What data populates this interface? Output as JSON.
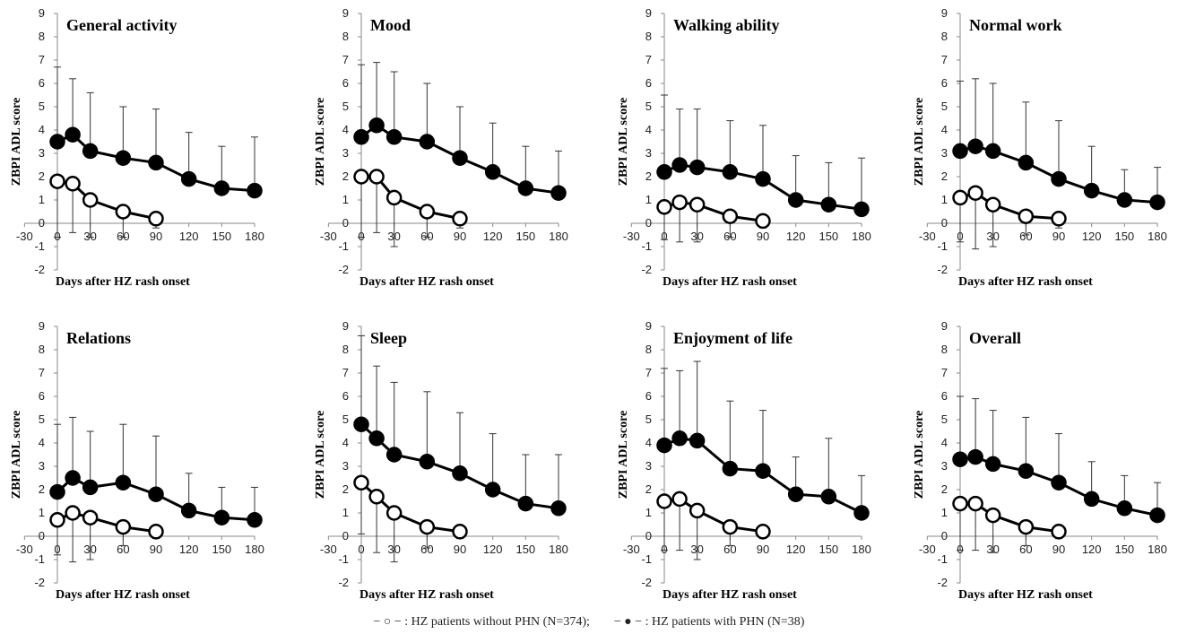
{
  "legend": {
    "without_prefix": "− ○ − :",
    "without_label": "HZ patients without PHN (N=374);",
    "with_prefix": "− ● − :",
    "with_label": "HZ patients with PHN (N=38)"
  },
  "chart_data": [
    {
      "type": "line",
      "title": "General activity",
      "xlabel": "Days after HZ rash onset",
      "ylabel": "ZBPI ADL score",
      "xlim": [
        -30,
        180
      ],
      "ylim": [
        -2,
        9
      ],
      "xticks": [
        -30,
        0,
        30,
        60,
        90,
        120,
        150,
        180
      ],
      "yticks": [
        -2,
        -1,
        0,
        1,
        2,
        3,
        4,
        5,
        6,
        7,
        8,
        9
      ],
      "series": [
        {
          "name": "HZ patients without PHN (N=374)",
          "marker": "open-circle",
          "x": [
            0,
            14,
            30,
            60,
            90
          ],
          "y": [
            1.8,
            1.7,
            1.0,
            0.5,
            0.2
          ],
          "error": [
            2.4,
            2.1,
            1.6,
            1.1,
            0.4
          ]
        },
        {
          "name": "HZ patients with PHN (N=38)",
          "marker": "filled-circle",
          "x": [
            0,
            14,
            30,
            60,
            90,
            120,
            150,
            180
          ],
          "y": [
            3.5,
            3.8,
            3.1,
            2.8,
            2.6,
            1.9,
            1.5,
            1.4
          ],
          "error": [
            3.2,
            2.4,
            2.5,
            2.2,
            2.3,
            2.0,
            1.8,
            2.3
          ]
        }
      ]
    },
    {
      "type": "line",
      "title": "Mood",
      "xlabel": "Days after HZ rash onset",
      "ylabel": "ZBPI ADL score",
      "xlim": [
        -30,
        180
      ],
      "ylim": [
        -2,
        9
      ],
      "xticks": [
        -30,
        0,
        30,
        60,
        90,
        120,
        150,
        180
      ],
      "yticks": [
        -2,
        -1,
        0,
        1,
        2,
        3,
        4,
        5,
        6,
        7,
        8,
        9
      ],
      "series": [
        {
          "name": "HZ patients without PHN (N=374)",
          "marker": "open-circle",
          "x": [
            0,
            14,
            30,
            60,
            90
          ],
          "y": [
            2.0,
            2.0,
            1.1,
            0.5,
            0.2
          ],
          "error": [
            2.6,
            2.4,
            2.1,
            1.1,
            0.4
          ]
        },
        {
          "name": "HZ patients with PHN (N=38)",
          "marker": "filled-circle",
          "x": [
            0,
            14,
            30,
            60,
            90,
            120,
            150,
            180
          ],
          "y": [
            3.7,
            4.2,
            3.7,
            3.5,
            2.8,
            2.2,
            1.5,
            1.3
          ],
          "error": [
            3.1,
            2.7,
            2.8,
            2.5,
            2.2,
            2.1,
            1.8,
            1.8
          ]
        }
      ]
    },
    {
      "type": "line",
      "title": "Walking ability",
      "xlabel": "Days after HZ rash onset",
      "ylabel": "ZBPI ADL score",
      "xlim": [
        -30,
        180
      ],
      "ylim": [
        -2,
        9
      ],
      "xticks": [
        -30,
        0,
        30,
        60,
        90,
        120,
        150,
        180
      ],
      "yticks": [
        -2,
        -1,
        0,
        1,
        2,
        3,
        4,
        5,
        6,
        7,
        8,
        9
      ],
      "series": [
        {
          "name": "HZ patients without PHN (N=374)",
          "marker": "open-circle",
          "x": [
            0,
            14,
            30,
            60,
            90
          ],
          "y": [
            0.7,
            0.9,
            0.8,
            0.3,
            0.1
          ],
          "error": [
            1.4,
            1.7,
            1.6,
            0.9,
            0.3
          ]
        },
        {
          "name": "HZ patients with PHN (N=38)",
          "marker": "filled-circle",
          "x": [
            0,
            14,
            30,
            60,
            90,
            120,
            150,
            180
          ],
          "y": [
            2.2,
            2.5,
            2.4,
            2.2,
            1.9,
            1.0,
            0.8,
            0.6
          ],
          "error": [
            3.3,
            2.4,
            2.5,
            2.2,
            2.3,
            1.9,
            1.8,
            2.2
          ]
        }
      ]
    },
    {
      "type": "line",
      "title": "Normal work",
      "xlabel": "Days after HZ rash onset",
      "ylabel": "ZBPI ADL score",
      "xlim": [
        -30,
        180
      ],
      "ylim": [
        -2,
        9
      ],
      "xticks": [
        -30,
        0,
        30,
        60,
        90,
        120,
        150,
        180
      ],
      "yticks": [
        -2,
        -1,
        0,
        1,
        2,
        3,
        4,
        5,
        6,
        7,
        8,
        9
      ],
      "series": [
        {
          "name": "HZ patients without PHN (N=374)",
          "marker": "open-circle",
          "x": [
            0,
            14,
            30,
            60,
            90
          ],
          "y": [
            1.1,
            1.3,
            0.8,
            0.3,
            0.2
          ],
          "error": [
            1.9,
            2.4,
            1.8,
            0.8,
            0.4
          ]
        },
        {
          "name": "HZ patients with PHN (N=38)",
          "marker": "filled-circle",
          "x": [
            0,
            14,
            30,
            60,
            90,
            120,
            150,
            180
          ],
          "y": [
            3.1,
            3.3,
            3.1,
            2.6,
            1.9,
            1.4,
            1.0,
            0.9
          ],
          "error": [
            3.0,
            2.9,
            2.9,
            2.6,
            2.5,
            1.9,
            1.3,
            1.5
          ]
        }
      ]
    },
    {
      "type": "line",
      "title": "Relations",
      "xlabel": "Days after HZ rash onset",
      "ylabel": "ZBPI ADL score",
      "xlim": [
        -30,
        180
      ],
      "ylim": [
        -2,
        9
      ],
      "xticks": [
        -30,
        0,
        30,
        60,
        90,
        120,
        150,
        180
      ],
      "yticks": [
        -2,
        -1,
        0,
        1,
        2,
        3,
        4,
        5,
        6,
        7,
        8,
        9
      ],
      "series": [
        {
          "name": "HZ patients without PHN (N=374)",
          "marker": "open-circle",
          "x": [
            0,
            14,
            30,
            60,
            90
          ],
          "y": [
            0.7,
            1.0,
            0.8,
            0.4,
            0.2
          ],
          "error": [
            1.5,
            2.1,
            1.8,
            0.8,
            0.3
          ]
        },
        {
          "name": "HZ patients with PHN (N=38)",
          "marker": "filled-circle",
          "x": [
            0,
            14,
            30,
            60,
            90,
            120,
            150,
            180
          ],
          "y": [
            1.9,
            2.5,
            2.1,
            2.3,
            1.8,
            1.1,
            0.8,
            0.7
          ],
          "error": [
            2.9,
            2.6,
            2.4,
            2.5,
            2.5,
            1.6,
            1.3,
            1.4
          ]
        }
      ]
    },
    {
      "type": "line",
      "title": "Sleep",
      "xlabel": "Days after HZ rash onset",
      "ylabel": "ZBPI ADL score",
      "xlim": [
        -30,
        180
      ],
      "ylim": [
        -2,
        9
      ],
      "xticks": [
        -30,
        0,
        30,
        60,
        90,
        120,
        150,
        180
      ],
      "yticks": [
        -2,
        -1,
        0,
        1,
        2,
        3,
        4,
        5,
        6,
        7,
        8,
        9
      ],
      "series": [
        {
          "name": "HZ patients without PHN (N=374)",
          "marker": "open-circle",
          "x": [
            0,
            14,
            30,
            60,
            90
          ],
          "y": [
            2.3,
            1.7,
            1.0,
            0.4,
            0.2
          ],
          "error": [
            2.2,
            2.4,
            2.1,
            0.9,
            0.3
          ]
        },
        {
          "name": "HZ patients with PHN (N=38)",
          "marker": "filled-circle",
          "x": [
            0,
            14,
            30,
            60,
            90,
            120,
            150,
            180
          ],
          "y": [
            4.8,
            4.2,
            3.5,
            3.2,
            2.7,
            2.0,
            1.4,
            1.2
          ],
          "error": [
            3.8,
            3.1,
            3.1,
            3.0,
            2.6,
            2.4,
            2.1,
            2.3
          ]
        }
      ]
    },
    {
      "type": "line",
      "title": "Enjoyment of life",
      "xlabel": "Days after HZ rash onset",
      "ylabel": "ZBPI ADL score",
      "xlim": [
        -30,
        180
      ],
      "ylim": [
        -2,
        9
      ],
      "xticks": [
        -30,
        0,
        30,
        60,
        90,
        120,
        150,
        180
      ],
      "yticks": [
        -2,
        -1,
        0,
        1,
        2,
        3,
        4,
        5,
        6,
        7,
        8,
        9
      ],
      "series": [
        {
          "name": "HZ patients without PHN (N=374)",
          "marker": "open-circle",
          "x": [
            0,
            14,
            30,
            60,
            90
          ],
          "y": [
            1.5,
            1.6,
            1.1,
            0.4,
            0.2
          ],
          "error": [
            2.1,
            2.2,
            2.1,
            0.8,
            0.3
          ]
        },
        {
          "name": "HZ patients with PHN (N=38)",
          "marker": "filled-circle",
          "x": [
            0,
            14,
            30,
            60,
            90,
            120,
            150,
            180
          ],
          "y": [
            3.9,
            4.2,
            4.1,
            2.9,
            2.8,
            1.8,
            1.7,
            1.0
          ],
          "error": [
            3.3,
            2.9,
            3.4,
            2.9,
            2.6,
            1.6,
            2.5,
            1.6
          ]
        }
      ]
    },
    {
      "type": "line",
      "title": "Overall",
      "xlabel": "Days after HZ rash onset",
      "ylabel": "ZBPI ADL score",
      "xlim": [
        -30,
        180
      ],
      "ylim": [
        -2,
        9
      ],
      "xticks": [
        -30,
        0,
        30,
        60,
        90,
        120,
        150,
        180
      ],
      "yticks": [
        -2,
        -1,
        0,
        1,
        2,
        3,
        4,
        5,
        6,
        7,
        8,
        9
      ],
      "series": [
        {
          "name": "HZ patients without PHN (N=374)",
          "marker": "open-circle",
          "x": [
            0,
            14,
            30,
            60,
            90
          ],
          "y": [
            1.4,
            1.4,
            0.9,
            0.4,
            0.2
          ],
          "error": [
            2.0,
            2.0,
            1.6,
            0.8,
            0.3
          ]
        },
        {
          "name": "HZ patients with PHN (N=38)",
          "marker": "filled-circle",
          "x": [
            0,
            14,
            30,
            60,
            90,
            120,
            150,
            180
          ],
          "y": [
            3.3,
            3.4,
            3.1,
            2.8,
            2.3,
            1.6,
            1.2,
            0.9
          ],
          "error": [
            2.7,
            2.5,
            2.3,
            2.3,
            2.1,
            1.6,
            1.4,
            1.4
          ]
        }
      ]
    }
  ]
}
